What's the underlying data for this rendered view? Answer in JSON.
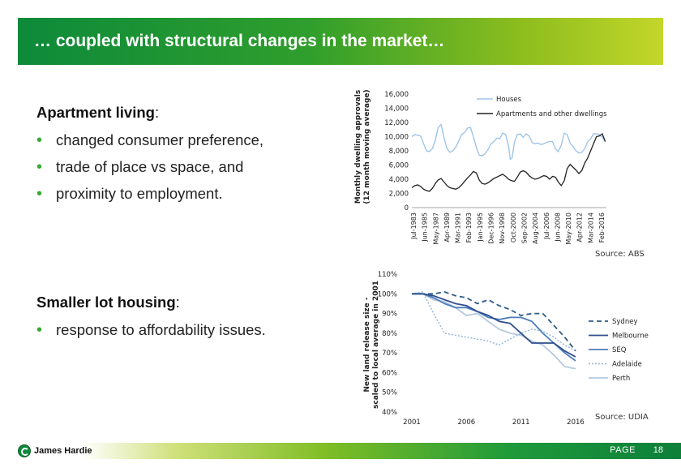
{
  "title": "… coupled with structural changes in the market…",
  "section1": {
    "heading": "Apartment living",
    "heading_suffix": ":",
    "bullets": [
      "changed consumer preference,",
      "trade of place vs space, and",
      "proximity to employment."
    ]
  },
  "section2": {
    "heading": "Smaller lot housing",
    "heading_suffix": ":",
    "bullets": [
      "response to affordability issues."
    ]
  },
  "footer": {
    "brand": "James Hardie",
    "page_label": "PAGE",
    "page_number": "18"
  },
  "colors": {
    "accent": "#39a935",
    "houses": "#9fc5e8",
    "apartments": "#222222",
    "sydney": "#2e5c8a",
    "melbourne": "#2f4f8f",
    "seq": "#4a7ebb",
    "adelaide": "#8fb3dc",
    "perth": "#b5c9df"
  },
  "chart_data": [
    {
      "type": "line",
      "title": "",
      "source": "Source: ABS",
      "ylabel": "Monthly dwelling approvals (12 month moving average)",
      "xlabel": "",
      "ylim": [
        0,
        16000
      ],
      "yticks": [
        "0",
        "2,000",
        "4,000",
        "6,000",
        "8,000",
        "10,000",
        "12,000",
        "14,000",
        "16,000"
      ],
      "x_tick_labels": [
        "Jul-1983",
        "Jun-1985",
        "May-1987",
        "Apr-1989",
        "Mar-1991",
        "Feb-1993",
        "Jan-1995",
        "Dec-1996",
        "Nov-1998",
        "Oct-2000",
        "Sep-2002",
        "Aug-2004",
        "Jul-2006",
        "Jun-2008",
        "May-2010",
        "Apr-2012",
        "Mar-2014",
        "Feb-2016"
      ],
      "x_start": 1983.5,
      "x_end": 2016.7,
      "legend": [
        "Houses",
        "Apartments and other dwellings"
      ],
      "series": [
        {
          "name": "Houses",
          "x": [
            1983.5,
            1984,
            1984.5,
            1985,
            1985.5,
            1986,
            1986.5,
            1987,
            1987.5,
            1988,
            1988.5,
            1989,
            1989.5,
            1990,
            1990.5,
            1991,
            1991.5,
            1992,
            1992.5,
            1993,
            1993.5,
            1994,
            1994.5,
            1995,
            1995.5,
            1996,
            1996.5,
            1997,
            1997.5,
            1998,
            1998.5,
            1999,
            1999.5,
            2000,
            2000.3,
            2000.6,
            2001,
            2001.5,
            2002,
            2002.5,
            2003,
            2003.5,
            2004,
            2004.5,
            2005,
            2005.5,
            2006,
            2006.5,
            2007,
            2007.5,
            2008,
            2008.5,
            2009,
            2009.5,
            2010,
            2010.5,
            2011,
            2011.5,
            2012,
            2012.5,
            2013,
            2013.5,
            2014,
            2014.5,
            2015,
            2015.5,
            2016,
            2016.5
          ],
          "values": [
            10000,
            10300,
            10200,
            10100,
            9000,
            8000,
            7900,
            8300,
            9500,
            11300,
            11700,
            9800,
            8300,
            7800,
            8000,
            8500,
            9400,
            10300,
            10600,
            11200,
            11300,
            10000,
            8500,
            7400,
            7300,
            7600,
            8200,
            9000,
            9300,
            9800,
            9700,
            10500,
            10300,
            8700,
            6800,
            7000,
            9200,
            10300,
            10400,
            9900,
            10400,
            10100,
            9200,
            9000,
            9100,
            8900,
            9000,
            9200,
            9300,
            9300,
            8300,
            7900,
            8800,
            10500,
            10300,
            9100,
            8600,
            8000,
            7700,
            7800,
            8300,
            9300,
            9700,
            10400,
            10400,
            10300,
            9900,
            9300
          ]
        },
        {
          "name": "Apartments and other dwellings",
          "x": [
            1983.5,
            1984,
            1984.5,
            1985,
            1985.5,
            1986,
            1986.5,
            1987,
            1987.5,
            1988,
            1988.5,
            1989,
            1989.5,
            1990,
            1990.5,
            1991,
            1991.5,
            1992,
            1992.5,
            1993,
            1993.5,
            1994,
            1994.5,
            1995,
            1995.5,
            1996,
            1996.5,
            1997,
            1997.5,
            1998,
            1998.5,
            1999,
            1999.5,
            2000,
            2000.5,
            2001,
            2001.5,
            2002,
            2002.5,
            2003,
            2003.5,
            2004,
            2004.5,
            2005,
            2005.5,
            2006,
            2006.5,
            2007,
            2007.5,
            2008,
            2008.5,
            2009,
            2009.5,
            2010,
            2010.5,
            2011,
            2011.5,
            2012,
            2012.5,
            2013,
            2013.5,
            2014,
            2014.5,
            2015,
            2015.5,
            2016,
            2016.5
          ],
          "values": [
            2800,
            3100,
            3200,
            3000,
            2600,
            2400,
            2300,
            2700,
            3400,
            3900,
            4100,
            3600,
            3100,
            2800,
            2700,
            2600,
            2800,
            3200,
            3700,
            4200,
            4600,
            5100,
            4900,
            3900,
            3400,
            3300,
            3500,
            3800,
            4100,
            4300,
            4500,
            4700,
            4400,
            4000,
            3800,
            3700,
            4300,
            5000,
            5200,
            5000,
            4500,
            4200,
            4000,
            4100,
            4300,
            4500,
            4400,
            4000,
            4400,
            4300,
            3600,
            3100,
            3800,
            5500,
            6100,
            5700,
            5300,
            4800,
            5200,
            6300,
            7000,
            8000,
            9000,
            10000,
            10100,
            10400,
            9300
          ]
        }
      ]
    },
    {
      "type": "line",
      "title": "",
      "source": "Source: UDIA",
      "ylabel": "New land release size - scaled to local average in 2001",
      "xlabel": "",
      "ylim": [
        40,
        110
      ],
      "yticks": [
        "40%",
        "50%",
        "60%",
        "70%",
        "80%",
        "90%",
        "100%",
        "110%"
      ],
      "x_tick_labels": [
        "2001",
        "2006",
        "2011",
        "2016"
      ],
      "x_start": 2001,
      "x_end": 2016,
      "series": [
        {
          "name": "Sydney",
          "x": [
            2001,
            2002,
            2003,
            2004,
            2005,
            2006,
            2007,
            2008,
            2009,
            2010,
            2011,
            2012,
            2013,
            2014,
            2015,
            2016
          ],
          "values": [
            100,
            100,
            100,
            101,
            99,
            98,
            95,
            97,
            94,
            92,
            89,
            90,
            90,
            84,
            78,
            71
          ]
        },
        {
          "name": "Melbourne",
          "x": [
            2001,
            2002,
            2003,
            2004,
            2005,
            2006,
            2007,
            2008,
            2009,
            2010,
            2011,
            2012,
            2013,
            2014,
            2015,
            2016
          ],
          "values": [
            100,
            100,
            99,
            97,
            95,
            94,
            91,
            89,
            86,
            85,
            80,
            75,
            75,
            75,
            71,
            68
          ]
        },
        {
          "name": "SEQ",
          "x": [
            2001,
            2002,
            2003,
            2004,
            2005,
            2006,
            2007,
            2008,
            2009,
            2010,
            2011,
            2012,
            2013,
            2014,
            2015,
            2016
          ],
          "values": [
            100,
            100,
            98,
            95,
            93,
            93,
            91,
            88,
            87,
            88,
            88,
            86,
            80,
            75,
            70,
            66
          ]
        },
        {
          "name": "Adelaide",
          "x": [
            2001,
            2002,
            2003,
            2004,
            2005,
            2006,
            2007,
            2008,
            2009,
            2010,
            2011,
            2012,
            2013,
            2014,
            2015,
            2016
          ],
          "values": [
            100,
            101,
            90,
            80,
            79,
            78,
            77,
            76,
            74,
            77,
            80,
            82,
            81,
            78,
            74,
            71
          ]
        },
        {
          "name": "Perth",
          "x": [
            2001,
            2002,
            2003,
            2004,
            2005,
            2006,
            2007,
            2008,
            2009,
            2010,
            2011,
            2012,
            2013,
            2014,
            2015,
            2016
          ],
          "values": [
            100,
            100,
            97,
            96,
            93,
            89,
            90,
            86,
            82,
            80,
            79,
            76,
            74,
            69,
            63,
            62
          ]
        }
      ]
    }
  ]
}
